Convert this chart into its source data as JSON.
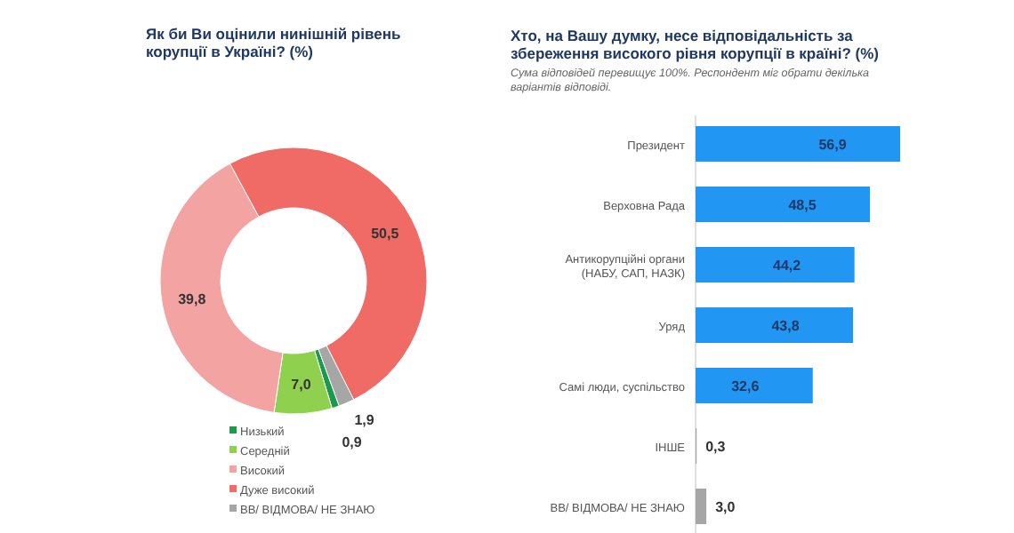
{
  "chart_data": [
    {
      "type": "donut",
      "title": "Як би Ви оцінили нинішній рівень корупції в Україні? (%)",
      "categories": [
        "Низький",
        "Середній",
        "Високий",
        "Дуже високий",
        "ВВ/ ВІДМОВА/ НЕ ЗНАЮ"
      ],
      "values": [
        0.9,
        7.0,
        39.8,
        50.5,
        1.9
      ],
      "colors": [
        "#1a9a4a",
        "#8fd14f",
        "#f4a3a3",
        "#f06b66",
        "#a6a6a6"
      ],
      "value_labels": [
        "0,9",
        "7,0",
        "39,8",
        "50,5",
        "1,9"
      ],
      "legend": "bottom"
    },
    {
      "type": "bar",
      "orientation": "horizontal",
      "title": "Хто, на Вашу думку, несе відповідальність за збереження високого рівня корупції в країні? (%)",
      "subtitle": "Сума відповідей перевищує 100%. Респондент міг обрати декілька варіантів відповіді.",
      "categories": [
        "Президент",
        "Верховна Рада",
        "Антикорупційні органи (НАБУ, САП, НАЗК)",
        "Уряд",
        "Самі люди, суспільство",
        "ІНШЕ",
        "ВВ/ ВІДМОВА/ НЕ ЗНАЮ"
      ],
      "values": [
        56.9,
        48.5,
        44.2,
        43.8,
        32.6,
        0.3,
        3.0
      ],
      "colors": [
        "#2196f3",
        "#2196f3",
        "#2196f3",
        "#2196f3",
        "#2196f3",
        "#a6a6a6",
        "#a6a6a6"
      ],
      "value_labels": [
        "56,9",
        "48,5",
        "44,2",
        "43,8",
        "32,6",
        "0,3",
        "3,0"
      ]
    }
  ]
}
